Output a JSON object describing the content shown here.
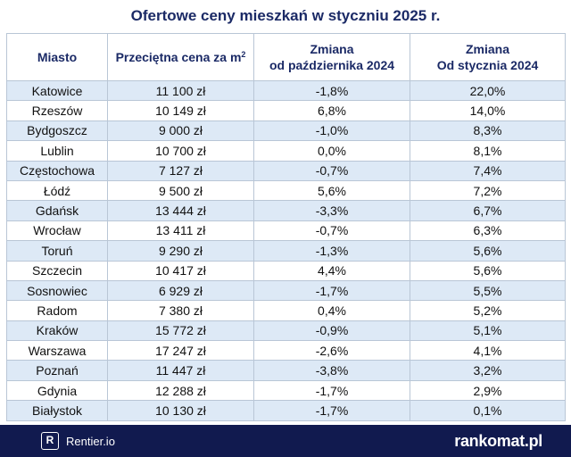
{
  "title": "Ofertowe ceny mieszkań w styczniu 2025 r.",
  "table": {
    "headers": {
      "city": "Miasto",
      "price": "Przeciętna cena za m",
      "price_sup": "2",
      "change_oct_line1": "Zmiana",
      "change_oct_line2": "od października 2024",
      "change_jan_line1": "Zmiana",
      "change_jan_line2": "Od stycznia 2024"
    },
    "rows": [
      {
        "city": "Katowice",
        "price": "11 100 zł",
        "change_oct": "-1,8%",
        "change_jan": "22,0%"
      },
      {
        "city": "Rzeszów",
        "price": "10 149 zł",
        "change_oct": "6,8%",
        "change_jan": "14,0%"
      },
      {
        "city": "Bydgoszcz",
        "price": "9 000 zł",
        "change_oct": "-1,0%",
        "change_jan": "8,3%"
      },
      {
        "city": "Lublin",
        "price": "10 700 zł",
        "change_oct": "0,0%",
        "change_jan": "8,1%"
      },
      {
        "city": "Częstochowa",
        "price": "7 127 zł",
        "change_oct": "-0,7%",
        "change_jan": "7,4%"
      },
      {
        "city": "Łódź",
        "price": "9 500 zł",
        "change_oct": "5,6%",
        "change_jan": "7,2%"
      },
      {
        "city": "Gdańsk",
        "price": "13 444 zł",
        "change_oct": "-3,3%",
        "change_jan": "6,7%"
      },
      {
        "city": "Wrocław",
        "price": "13 411 zł",
        "change_oct": "-0,7%",
        "change_jan": "6,3%"
      },
      {
        "city": "Toruń",
        "price": "9 290 zł",
        "change_oct": "-1,3%",
        "change_jan": "5,6%"
      },
      {
        "city": "Szczecin",
        "price": "10 417 zł",
        "change_oct": "4,4%",
        "change_jan": "5,6%"
      },
      {
        "city": "Sosnowiec",
        "price": "6 929 zł",
        "change_oct": "-1,7%",
        "change_jan": "5,5%"
      },
      {
        "city": "Radom",
        "price": "7 380 zł",
        "change_oct": "0,4%",
        "change_jan": "5,2%"
      },
      {
        "city": "Kraków",
        "price": "15 772 zł",
        "change_oct": "-0,9%",
        "change_jan": "5,1%"
      },
      {
        "city": "Warszawa",
        "price": "17 247 zł",
        "change_oct": "-2,6%",
        "change_jan": "4,1%"
      },
      {
        "city": "Poznań",
        "price": "11 447 zł",
        "change_oct": "-3,8%",
        "change_jan": "3,2%"
      },
      {
        "city": "Gdynia",
        "price": "12 288 zł",
        "change_oct": "-1,7%",
        "change_jan": "2,9%"
      },
      {
        "city": "Białystok",
        "price": "10 130 zł",
        "change_oct": "-1,7%",
        "change_jan": "0,1%"
      }
    ]
  },
  "footer": {
    "left_badge": "R",
    "left_brand": "Rentier.io",
    "right_brand": "rankomat.pl"
  },
  "colors": {
    "title": "#1b2a66",
    "row_stripe": "#dde9f6",
    "footer_bg": "#111a4f"
  }
}
